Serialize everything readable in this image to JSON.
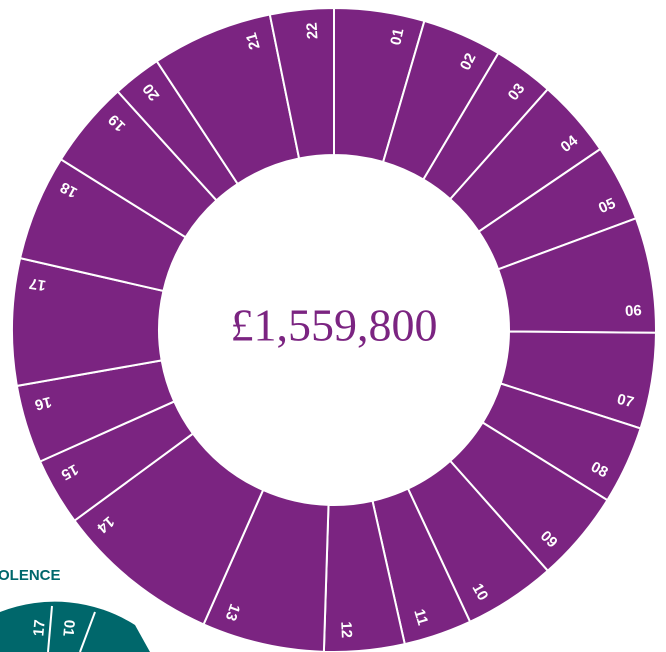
{
  "chart_data": {
    "type": "donut",
    "center_label": "£1,559,800",
    "categories": [
      "01",
      "02",
      "03",
      "04",
      "05",
      "06",
      "07",
      "08",
      "09",
      "10",
      "11",
      "12",
      "13",
      "14",
      "15",
      "16",
      "17",
      "18",
      "19",
      "20",
      "21",
      "22"
    ],
    "values": [
      16.3,
      14.4,
      10.9,
      14.2,
      13.9,
      20.8,
      17.3,
      14.1,
      16.5,
      16.6,
      12.3,
      14.5,
      22.1,
      29.8,
      12.2,
      14.1,
      22.9,
      19.1,
      15.8,
      8.8,
      21.9,
      11.5
    ],
    "color": "#7b2481"
  },
  "fragment": {
    "title": "OLENCE",
    "labels": [
      "17",
      "01"
    ]
  }
}
